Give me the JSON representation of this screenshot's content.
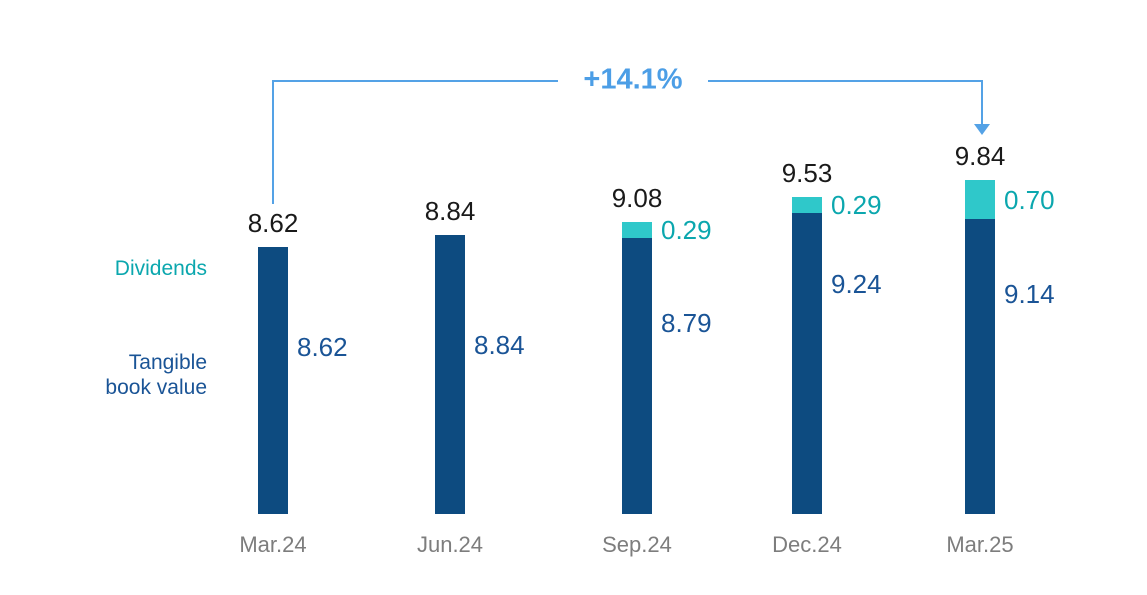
{
  "colors": {
    "tangible_bar": "#0d4b80",
    "dividends_bar": "#2fc8ca",
    "tangible_text": "#1a5496",
    "dividends_text": "#0ba7ae",
    "total_text": "#1a1a1a",
    "axis_text": "#7d7d7d",
    "annotation_blue": "#54a2e6"
  },
  "legend": {
    "dividends": "Dividends",
    "tangible_line1": "Tangible",
    "tangible_line2": "book value"
  },
  "chart_data": {
    "type": "bar",
    "stacked": true,
    "categories": [
      "Mar.24",
      "Jun.24",
      "Sep.24",
      "Dec.24",
      "Mar.25"
    ],
    "series": [
      {
        "name": "Tangible book value",
        "values": [
          8.62,
          8.84,
          8.79,
          9.24,
          9.14
        ]
      },
      {
        "name": "Dividends",
        "values": [
          0,
          0,
          0.29,
          0.29,
          0.7
        ]
      }
    ],
    "totals": [
      8.62,
      8.84,
      9.08,
      9.53,
      9.84
    ],
    "total_labels": [
      "8.62",
      "8.84",
      "9.08",
      "9.53",
      "9.84"
    ],
    "tangible_labels": [
      "8.62",
      "8.84",
      "8.79",
      "9.24",
      "9.14"
    ],
    "dividend_labels": [
      "",
      "",
      "0.29",
      "0.29",
      "0.70"
    ],
    "annotation": {
      "text": "+14.1%",
      "from_category": "Mar.24",
      "to_category": "Mar.25"
    },
    "legend_position": "left",
    "grid": false,
    "axis_hidden": true
  }
}
